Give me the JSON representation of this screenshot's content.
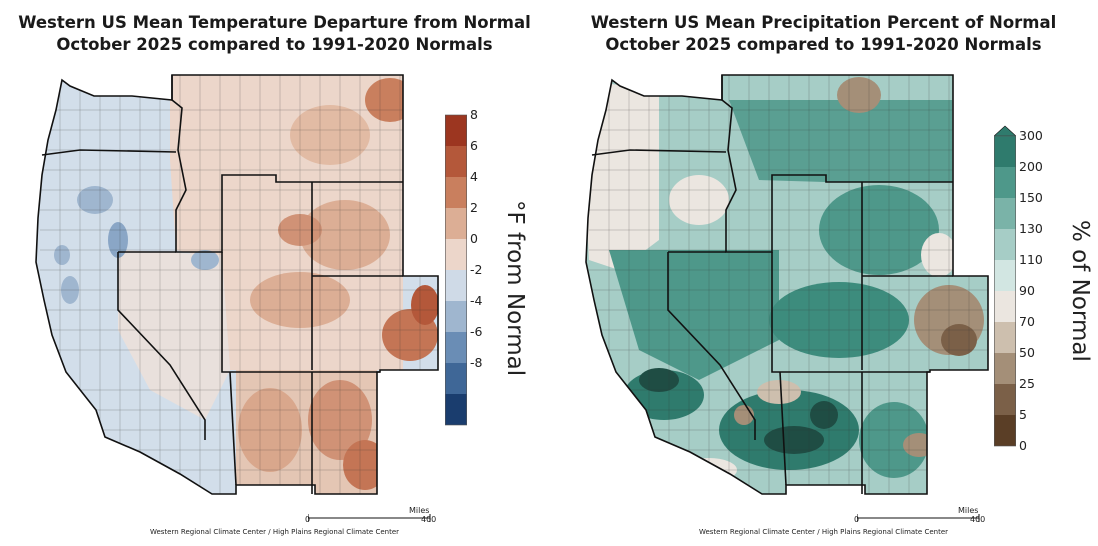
{
  "temperature_panel": {
    "title_line1": "Western US Mean Temperature Departure from Normal",
    "title_line2": "October 2025 compared to 1991-2020 Normals",
    "legend": {
      "title": "°F from Normal",
      "ticks": [
        "8",
        "6",
        "4",
        "2",
        "0",
        "-2",
        "-4",
        "-6",
        "-8"
      ],
      "colors": [
        "#9c3620",
        "#b4583a",
        "#c97f5e",
        "#dcae95",
        "#ecd6ca",
        "#cfdae7",
        "#9fb6cf",
        "#6a8db5",
        "#3f6797",
        "#1a3d6e"
      ]
    },
    "scale": {
      "label": "Miles",
      "min": "0",
      "max": "400"
    },
    "credit": "Western Regional Climate Center / High Plains Regional Climate Center"
  },
  "precipitation_panel": {
    "title_line1": "Western US Mean Precipitation Percent of Normal",
    "title_line2": "October 2025 compared to 1991-2020 Normals",
    "legend": {
      "title": "% of Normal",
      "ticks": [
        "300",
        "200",
        "150",
        "130",
        "110",
        "90",
        "70",
        "50",
        "25",
        "5",
        "0"
      ],
      "colors": [
        "#2f7b6d",
        "#4e988a",
        "#7ab3a8",
        "#a6cdc6",
        "#d2e6e2",
        "#ebe6e0",
        "#cdbfae",
        "#a48f78",
        "#7b6048",
        "#5a3e26"
      ]
    },
    "scale": {
      "label": "Miles",
      "min": "0",
      "max": "400"
    },
    "credit": "Western Regional Climate Center / High Plains Regional Climate Center"
  }
}
